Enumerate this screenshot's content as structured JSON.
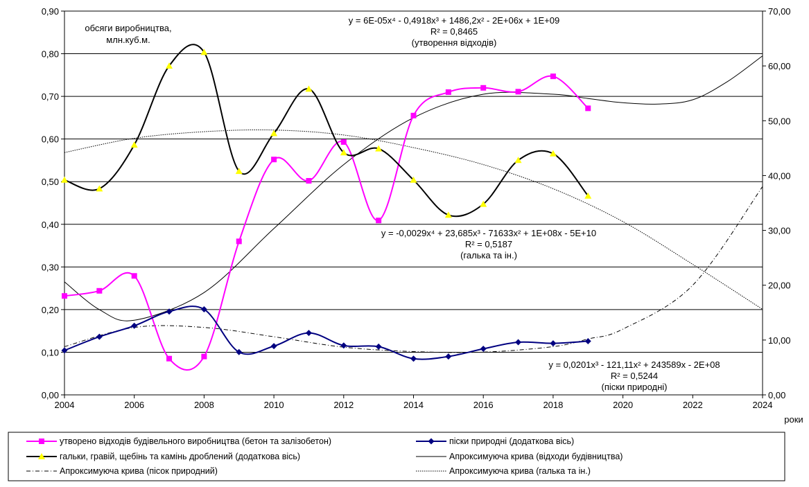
{
  "chart_data": {
    "type": "line",
    "x_axis": {
      "min": 2004,
      "max": 2024,
      "ticks": [
        "2004",
        "2006",
        "2008",
        "2010",
        "2012",
        "2014",
        "2016",
        "2018",
        "2020",
        "2022",
        "2024"
      ],
      "label": "роки"
    },
    "y_left": {
      "min": 0,
      "max": 0.9,
      "ticks": [
        "0,00",
        "0,10",
        "0,20",
        "0,30",
        "0,40",
        "0,50",
        "0,60",
        "0,70",
        "0,80",
        "0,90"
      ],
      "label_line1": "обсяги виробництва,",
      "label_line2": "млн.куб.м."
    },
    "y_right": {
      "min": 0,
      "max": 70,
      "ticks": [
        "0,00",
        "10,00",
        "20,00",
        "30,00",
        "40,00",
        "50,00",
        "60,00",
        "70,00"
      ]
    },
    "grid": "horizontal",
    "years": [
      2004,
      2005,
      2006,
      2007,
      2008,
      2009,
      2010,
      2011,
      2012,
      2013,
      2014,
      2015,
      2016,
      2017,
      2018,
      2019
    ],
    "series": [
      {
        "name": "утворено відходів будівельного виробництва (бетон та залізобетон)",
        "axis": "left",
        "color": "#ff00ff",
        "marker": "square",
        "values": [
          0.232,
          0.244,
          0.279,
          0.085,
          0.09,
          0.36,
          0.552,
          0.502,
          0.593,
          0.409,
          0.655,
          0.71,
          0.72,
          0.711,
          0.747,
          0.672
        ]
      },
      {
        "name": "піски природні (додаткова вісь)",
        "axis": "right",
        "color": "#000080",
        "marker": "diamond",
        "values": [
          8.1,
          10.6,
          12.6,
          15.2,
          15.6,
          7.8,
          8.9,
          11.3,
          9.0,
          8.8,
          6.6,
          7.0,
          8.4,
          9.6,
          9.4,
          9.8
        ]
      },
      {
        "name": "гальки, гравій, щебінь та камінь дроблений (додаткова вісь)",
        "axis": "right",
        "color": "#000000",
        "marker_color": "#ffff00",
        "marker": "triangle",
        "values": [
          39.2,
          37.6,
          45.6,
          60.0,
          62.5,
          40.8,
          47.7,
          55.8,
          44.2,
          44.9,
          39.2,
          32.8,
          34.8,
          42.8,
          44.0,
          36.3
        ]
      }
    ],
    "trendlines": [
      {
        "name": "Апроксимуюча крива (відходи будівництва)",
        "axis": "left",
        "style": "solid",
        "xs": [
          2004,
          2005,
          2006,
          2008,
          2010,
          2012,
          2014,
          2016,
          2018,
          2019,
          2020,
          2021,
          2022,
          2023,
          2024
        ],
        "values": [
          0.265,
          0.2,
          0.175,
          0.24,
          0.39,
          0.54,
          0.65,
          0.705,
          0.705,
          0.695,
          0.685,
          0.682,
          0.692,
          0.735,
          0.795
        ]
      },
      {
        "name": "Апроксимуюча крива (пісок природний)",
        "axis": "right",
        "style": "dashdot",
        "xs": [
          2004,
          2006,
          2008,
          2010,
          2012,
          2014,
          2016,
          2018,
          2019,
          2020,
          2022,
          2024
        ],
        "values": [
          8.8,
          12.3,
          12.3,
          10.6,
          8.7,
          7.9,
          7.8,
          8.8,
          10.2,
          12.0,
          20.0,
          38.0
        ]
      },
      {
        "name": "Апроксимуюча крива (галька та ін.)",
        "axis": "right",
        "style": "dotted",
        "xs": [
          2004,
          2006,
          2008,
          2010,
          2012,
          2014,
          2016,
          2018,
          2020,
          2022,
          2024
        ],
        "values": [
          44.2,
          46.8,
          48.0,
          48.3,
          47.4,
          45.1,
          42.0,
          37.6,
          31.6,
          23.8,
          15.6
        ]
      }
    ],
    "annotations": [
      {
        "id": "waste",
        "lines": [
          "y = 6E-05x⁴ - 0,4918x³ + 1486,2x² - 2E+06x + 1E+09",
          "R² = 0,8465",
          "(утворення відходів)"
        ]
      },
      {
        "id": "gravel",
        "lines": [
          "y = -0,0029x⁴ + 23,685x³ - 71633x² + 1E+08x - 5E+10",
          "R² = 0,5187",
          "(галька та ін.)"
        ]
      },
      {
        "id": "sand",
        "lines": [
          "y = 0,0201x³ - 121,11x² + 243589x - 2E+08",
          "R² = 0,5244",
          "(піски природні)"
        ]
      }
    ],
    "legend": {
      "position": "bottom",
      "items": [
        {
          "label": "утворено відходів будівельного виробництва (бетон та залізобетон)",
          "style": "magenta-square"
        },
        {
          "label": "піски природні (додаткова вісь)",
          "style": "navy-diamond"
        },
        {
          "label": "гальки, гравій, щебінь та камінь дроблений (додаткова вісь)",
          "style": "black-yellow-triangle"
        },
        {
          "label": "Апроксимуюча крива (відходи будівництва)",
          "style": "solid"
        },
        {
          "label": "Апроксимуюча крива (пісок природний)",
          "style": "dashdot"
        },
        {
          "label": "Апроксимуюча крива (галька та ін.)",
          "style": "dotted"
        }
      ]
    }
  }
}
